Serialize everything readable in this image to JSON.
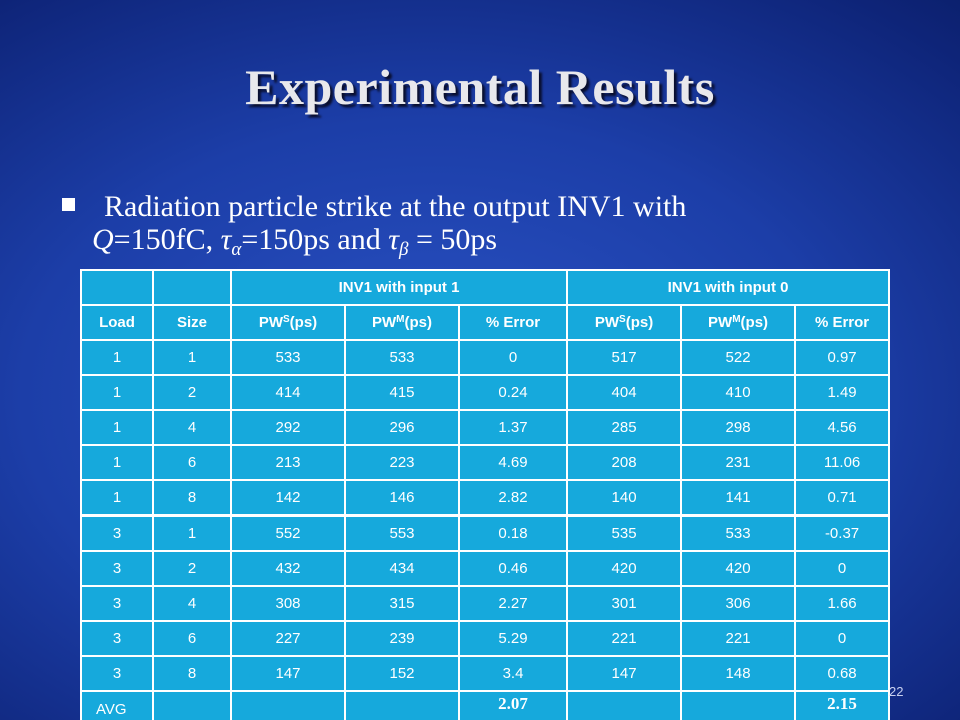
{
  "slide": {
    "title": "Experimental Results",
    "page_number": "22"
  },
  "bullet": {
    "line1": "Radiation particle strike at the output INV1 with",
    "q_var": "Q",
    "q_val": "=150fC, ",
    "tau": "τ",
    "alpha": "α",
    "alpha_val": "=150ps and ",
    "beta": "β",
    "beta_val": " = 50ps"
  },
  "table": {
    "group_headers": [
      "INV1 with input 1",
      "INV1 with input 0"
    ],
    "columns": [
      {
        "base": "Load",
        "sup": ""
      },
      {
        "base": "Size",
        "sup": ""
      },
      {
        "base": "PW",
        "sup": "S",
        "suffix": "(ps)"
      },
      {
        "base": "PW",
        "sup": "M",
        "suffix": "(ps)"
      },
      {
        "base": "% Error",
        "sup": ""
      },
      {
        "base": "PW",
        "sup": "S",
        "suffix": "(ps)"
      },
      {
        "base": "PW",
        "sup": "M",
        "suffix": "(ps)"
      },
      {
        "base": "% Error",
        "sup": ""
      }
    ],
    "rows": [
      [
        "1",
        "1",
        "533",
        "533",
        "0",
        "517",
        "522",
        "0.97"
      ],
      [
        "1",
        "2",
        "414",
        "415",
        "0.24",
        "404",
        "410",
        "1.49"
      ],
      [
        "1",
        "4",
        "292",
        "296",
        "1.37",
        "285",
        "298",
        "4.56"
      ],
      [
        "1",
        "6",
        "213",
        "223",
        "4.69",
        "208",
        "231",
        "11.06"
      ],
      [
        "1",
        "8",
        "142",
        "146",
        "2.82",
        "140",
        "141",
        "0.71"
      ],
      [
        "3",
        "1",
        "552",
        "553",
        "0.18",
        "535",
        "533",
        "-0.37"
      ],
      [
        "3",
        "2",
        "432",
        "434",
        "0.46",
        "420",
        "420",
        "0"
      ],
      [
        "3",
        "4",
        "308",
        "315",
        "2.27",
        "301",
        "306",
        "1.66"
      ],
      [
        "3",
        "6",
        "227",
        "239",
        "5.29",
        "221",
        "221",
        "0"
      ],
      [
        "3",
        "8",
        "147",
        "152",
        "3.4",
        "147",
        "148",
        "0.68"
      ]
    ],
    "avg": {
      "label": "AVG",
      "error_input1": "2.07",
      "error_input0": "2.15"
    }
  },
  "colors": {
    "background": "#1c3ea8",
    "table_cell": "#16a9dc",
    "text": "#ffffff"
  }
}
